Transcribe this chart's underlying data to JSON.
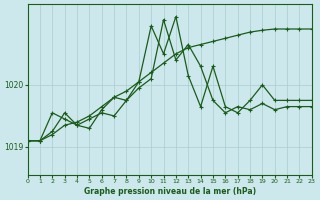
{
  "title": "Graphe pression niveau de la mer (hPa)",
  "bg_color": "#cce8ec",
  "grid_color": "#aacccc",
  "line_color": "#1a5c1a",
  "xlim": [
    0,
    23
  ],
  "ylim": [
    1018.55,
    1021.3
  ],
  "yticks": [
    1019,
    1020
  ],
  "xticks": [
    0,
    1,
    2,
    3,
    4,
    5,
    6,
    7,
    8,
    9,
    10,
    11,
    12,
    13,
    14,
    15,
    16,
    17,
    18,
    19,
    20,
    21,
    22,
    23
  ],
  "series1": {
    "x": [
      0,
      1,
      2,
      3,
      4,
      5,
      6,
      7,
      8,
      9,
      10,
      11,
      12,
      13,
      14,
      15,
      16,
      17,
      18,
      19,
      20,
      21,
      22,
      23
    ],
    "y": [
      1019.1,
      1019.1,
      1019.2,
      1019.35,
      1019.4,
      1019.5,
      1019.65,
      1019.8,
      1019.9,
      1020.05,
      1020.2,
      1020.35,
      1020.5,
      1020.6,
      1020.65,
      1020.7,
      1020.75,
      1020.8,
      1020.85,
      1020.88,
      1020.9,
      1020.9,
      1020.9,
      1020.9
    ]
  },
  "series2": {
    "x": [
      0,
      1,
      2,
      3,
      4,
      5,
      6,
      7,
      8,
      9,
      10,
      11,
      12,
      13,
      14,
      15,
      16,
      17,
      18,
      19,
      20,
      21,
      22,
      23
    ],
    "y": [
      1019.1,
      1019.1,
      1019.55,
      1019.45,
      1019.35,
      1019.45,
      1019.55,
      1019.5,
      1019.75,
      1020.05,
      1020.95,
      1020.5,
      1021.1,
      1020.15,
      1019.65,
      1020.3,
      1019.65,
      1019.55,
      1019.75,
      1020.0,
      1019.75,
      1019.75,
      1019.75,
      1019.75
    ]
  },
  "series3": {
    "x": [
      0,
      1,
      2,
      3,
      4,
      5,
      6,
      7,
      8,
      9,
      10,
      11,
      12,
      13,
      14,
      15,
      16,
      17,
      18,
      19,
      20,
      21,
      22,
      23
    ],
    "y": [
      1019.1,
      1019.1,
      1019.25,
      1019.55,
      1019.35,
      1019.3,
      1019.6,
      1019.8,
      1019.75,
      1019.95,
      1020.1,
      1021.05,
      1020.4,
      1020.65,
      1020.3,
      1019.75,
      1019.55,
      1019.65,
      1019.6,
      1019.7,
      1019.6,
      1019.65,
      1019.65,
      1019.65
    ]
  }
}
